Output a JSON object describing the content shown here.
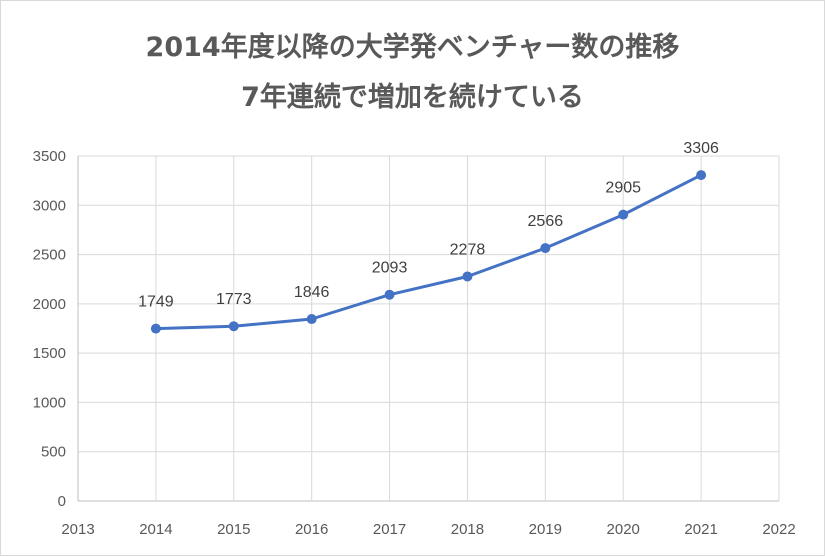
{
  "chart_data": {
    "type": "scatter",
    "title_line1": "2014年度以降の大学発ベンチャー数の推移",
    "title_line2": "7年連続で増加を続けている",
    "x": [
      2014,
      2015,
      2016,
      2017,
      2018,
      2019,
      2020,
      2021
    ],
    "values": [
      1749,
      1773,
      1846,
      2093,
      2278,
      2566,
      2905,
      3306
    ],
    "xlim": [
      2013,
      2022
    ],
    "ylim": [
      0,
      3500
    ],
    "x_ticks": [
      "2013",
      "2014",
      "2015",
      "2016",
      "2017",
      "2018",
      "2019",
      "2020",
      "2021",
      "2022"
    ],
    "y_ticks": [
      "0",
      "500",
      "1000",
      "1500",
      "2000",
      "2500",
      "3000",
      "3500"
    ],
    "data_labels": [
      "1749",
      "1773",
      "1846",
      "2093",
      "2278",
      "2566",
      "2905",
      "3306"
    ],
    "grid": true,
    "line_color": "#4472c4",
    "grid_color": "#d9d9d9"
  }
}
